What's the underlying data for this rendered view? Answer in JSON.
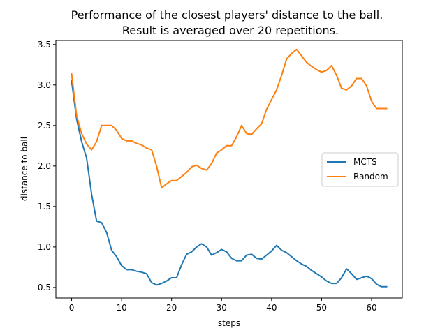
{
  "chart_data": {
    "type": "line",
    "title_lines": [
      "Performance of the closest players' distance to the ball.",
      "Result is averaged over 20 repetitions."
    ],
    "xlabel": "steps",
    "ylabel": "distance to ball",
    "xlim": [
      -3.15,
      66.15
    ],
    "ylim": [
      0.37,
      3.55
    ],
    "xticks": [
      0,
      10,
      20,
      30,
      40,
      50,
      60
    ],
    "xtick_labels": [
      "0",
      "10",
      "20",
      "30",
      "40",
      "50",
      "60"
    ],
    "yticks": [
      0.5,
      1.0,
      1.5,
      2.0,
      2.5,
      3.0,
      3.5
    ],
    "ytick_labels": [
      "0.5",
      "1.0",
      "1.5",
      "2.0",
      "2.5",
      "3.0",
      "3.5"
    ],
    "legend_position": "center-right",
    "x": [
      0,
      1,
      2,
      3,
      4,
      5,
      6,
      7,
      8,
      9,
      10,
      11,
      12,
      13,
      14,
      15,
      16,
      17,
      18,
      19,
      20,
      21,
      22,
      23,
      24,
      25,
      26,
      27,
      28,
      29,
      30,
      31,
      32,
      33,
      34,
      35,
      36,
      37,
      38,
      39,
      40,
      41,
      42,
      43,
      44,
      45,
      46,
      47,
      48,
      49,
      50,
      51,
      52,
      53,
      54,
      55,
      56,
      57,
      58,
      59,
      60,
      61,
      62,
      63
    ],
    "series": [
      {
        "name": "MCTS",
        "color": "#1f77b4",
        "values": [
          3.05,
          2.58,
          2.3,
          2.1,
          1.65,
          1.32,
          1.3,
          1.18,
          0.96,
          0.88,
          0.77,
          0.72,
          0.72,
          0.7,
          0.69,
          0.67,
          0.56,
          0.53,
          0.55,
          0.58,
          0.62,
          0.62,
          0.78,
          0.91,
          0.94,
          1.0,
          1.04,
          1.0,
          0.9,
          0.93,
          0.97,
          0.94,
          0.86,
          0.83,
          0.83,
          0.9,
          0.91,
          0.86,
          0.85,
          0.9,
          0.95,
          1.02,
          0.96,
          0.93,
          0.88,
          0.83,
          0.79,
          0.76,
          0.71,
          0.67,
          0.63,
          0.58,
          0.55,
          0.55,
          0.62,
          0.73,
          0.67,
          0.6,
          0.62,
          0.64,
          0.61,
          0.54,
          0.51,
          0.51
        ]
      },
      {
        "name": "Random",
        "color": "#ff7f0e",
        "values": [
          3.14,
          2.62,
          2.4,
          2.27,
          2.2,
          2.3,
          2.5,
          2.5,
          2.5,
          2.44,
          2.34,
          2.31,
          2.31,
          2.28,
          2.26,
          2.22,
          2.2,
          2.0,
          1.73,
          1.78,
          1.82,
          1.82,
          1.87,
          1.92,
          1.99,
          2.01,
          1.97,
          1.95,
          2.03,
          2.16,
          2.2,
          2.25,
          2.25,
          2.36,
          2.5,
          2.4,
          2.39,
          2.46,
          2.52,
          2.7,
          2.82,
          2.94,
          3.12,
          3.32,
          3.39,
          3.44,
          3.36,
          3.28,
          3.23,
          3.19,
          3.16,
          3.18,
          3.24,
          3.12,
          2.96,
          2.94,
          2.99,
          3.08,
          3.08,
          2.99,
          2.8,
          2.71,
          2.71,
          2.71
        ]
      }
    ]
  }
}
